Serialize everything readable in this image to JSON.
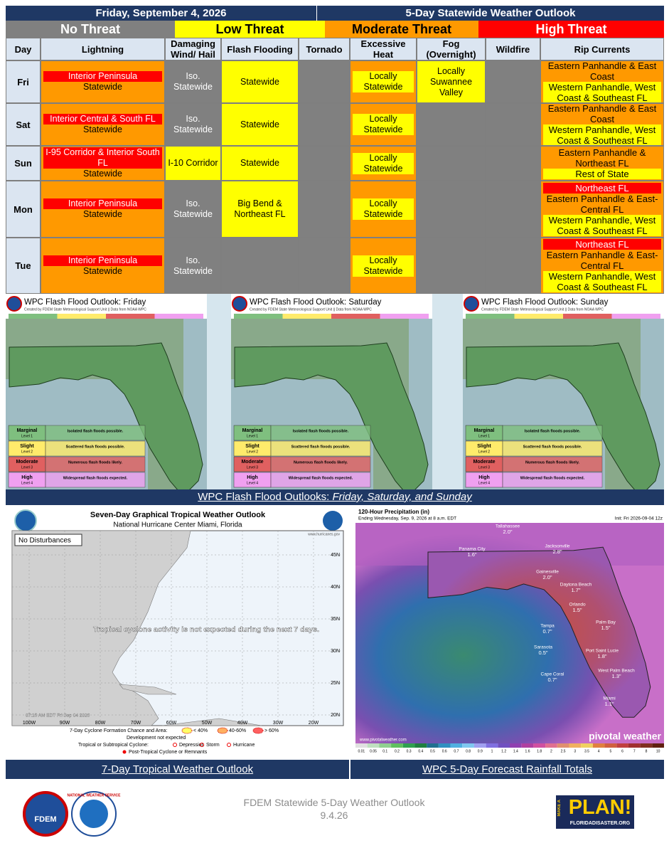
{
  "header": {
    "date": "Friday, September 4, 2026",
    "title": "5-Day Statewide Weather Outlook"
  },
  "legend": [
    {
      "text": "No Threat",
      "color": "#808080"
    },
    {
      "text": "Low Threat",
      "color": "#ffff00"
    },
    {
      "text": "Moderate Threat",
      "color": "#ff9900"
    },
    {
      "text": "High Threat",
      "color": "#ff0000"
    }
  ],
  "table": {
    "columns": [
      "Day",
      "Lightning",
      "Damaging Wind/ Hail",
      "Flash Flooding",
      "Tornado",
      "Excessive Heat",
      "Fog (Overnight)",
      "Wildfire",
      "Rip Currents"
    ],
    "rows": [
      {
        "day": "Fri",
        "cells": [
          {
            "bg": "#ff9900",
            "lines": [
              {
                "text": "Interior Peninsula",
                "bg": "#ff0000"
              },
              {
                "text": "Statewide"
              }
            ]
          },
          {
            "bg": "#808080",
            "lines": [
              {
                "text": "Iso. Statewide"
              }
            ]
          },
          {
            "bg": "#ffff00",
            "lines": [
              {
                "text": "Statewide"
              }
            ]
          },
          {
            "bg": "#808080",
            "lines": []
          },
          {
            "bg": "#ff9900",
            "lines": [
              {
                "text": "Locally Statewide",
                "bg": "#ffff00"
              }
            ]
          },
          {
            "bg": "#ffff00",
            "lines": [
              {
                "text": "Locally Suwannee Valley"
              }
            ]
          },
          {
            "bg": "#808080",
            "lines": []
          },
          {
            "bg": "#ff9900",
            "lines": [
              {
                "text": "Eastern Panhandle & East Coast"
              },
              {
                "text": "Western Panhandle, West Coast & Southeast FL",
                "bg": "#ffff00"
              }
            ]
          }
        ]
      },
      {
        "day": "Sat",
        "cells": [
          {
            "bg": "#ff9900",
            "lines": [
              {
                "text": "Interior Central & South FL",
                "bg": "#ff0000"
              },
              {
                "text": "Statewide"
              }
            ]
          },
          {
            "bg": "#808080",
            "lines": [
              {
                "text": "Iso. Statewide"
              }
            ]
          },
          {
            "bg": "#ffff00",
            "lines": [
              {
                "text": "Statewide"
              }
            ]
          },
          {
            "bg": "#808080",
            "lines": []
          },
          {
            "bg": "#ff9900",
            "lines": [
              {
                "text": "Locally Statewide",
                "bg": "#ffff00"
              }
            ]
          },
          {
            "bg": "#808080",
            "lines": []
          },
          {
            "bg": "#808080",
            "lines": []
          },
          {
            "bg": "#ff9900",
            "lines": [
              {
                "text": "Eastern Panhandle & East Coast"
              },
              {
                "text": "Western Panhandle, West Coast & Southeast FL",
                "bg": "#ffff00"
              }
            ]
          }
        ]
      },
      {
        "day": "Sun",
        "cells": [
          {
            "bg": "#ff9900",
            "lines": [
              {
                "text": "I-95 Corridor & Interior South FL",
                "bg": "#ff0000"
              },
              {
                "text": "Statewide"
              }
            ]
          },
          {
            "bg": "#ffff00",
            "lines": [
              {
                "text": "I-10 Corridor"
              }
            ]
          },
          {
            "bg": "#ffff00",
            "lines": [
              {
                "text": "Statewide"
              }
            ]
          },
          {
            "bg": "#808080",
            "lines": []
          },
          {
            "bg": "#ff9900",
            "lines": [
              {
                "text": "Locally Statewide",
                "bg": "#ffff00"
              }
            ]
          },
          {
            "bg": "#808080",
            "lines": []
          },
          {
            "bg": "#808080",
            "lines": []
          },
          {
            "bg": "#ff9900",
            "lines": [
              {
                "text": "Eastern Panhandle & Northeast FL"
              },
              {
                "text": "Rest of State",
                "bg": "#ffff00"
              }
            ]
          }
        ]
      },
      {
        "day": "Mon",
        "cells": [
          {
            "bg": "#ff9900",
            "lines": [
              {
                "text": "Interior Peninsula",
                "bg": "#ff0000"
              },
              {
                "text": "Statewide"
              }
            ]
          },
          {
            "bg": "#808080",
            "lines": [
              {
                "text": "Iso. Statewide"
              }
            ]
          },
          {
            "bg": "#ffff00",
            "lines": [
              {
                "text": "Big Bend & Northeast FL"
              }
            ]
          },
          {
            "bg": "#808080",
            "lines": []
          },
          {
            "bg": "#ff9900",
            "lines": [
              {
                "text": "Locally Statewide",
                "bg": "#ffff00"
              }
            ]
          },
          {
            "bg": "#808080",
            "lines": []
          },
          {
            "bg": "#808080",
            "lines": []
          },
          {
            "bg": "#ff9900",
            "lines": [
              {
                "text": "Northeast FL",
                "bg": "#ff0000"
              },
              {
                "text": "Eastern Panhandle & East-Central FL"
              },
              {
                "text": "Western Panhandle, West Coast & Southeast FL",
                "bg": "#ffff00"
              }
            ]
          }
        ]
      },
      {
        "day": "Tue",
        "cells": [
          {
            "bg": "#ff9900",
            "lines": [
              {
                "text": "Interior Peninsula",
                "bg": "#ff0000"
              },
              {
                "text": "Statewide"
              }
            ]
          },
          {
            "bg": "#808080",
            "lines": [
              {
                "text": "Iso. Statewide"
              }
            ]
          },
          {
            "bg": "#808080",
            "lines": []
          },
          {
            "bg": "#808080",
            "lines": []
          },
          {
            "bg": "#ff9900",
            "lines": [
              {
                "text": "Locally Statewide",
                "bg": "#ffff00"
              }
            ]
          },
          {
            "bg": "#808080",
            "lines": []
          },
          {
            "bg": "#808080",
            "lines": []
          },
          {
            "bg": "#ff9900",
            "lines": [
              {
                "text": "Northeast FL",
                "bg": "#ff0000"
              },
              {
                "text": "Eastern Panhandle & East-Central FL"
              },
              {
                "text": "Western Panhandle, West Coast & Southeast FL",
                "bg": "#ffff00"
              }
            ]
          }
        ]
      }
    ]
  },
  "flash_flood": {
    "panels": [
      {
        "title": "WPC Flash Flood Outlook: Friday"
      },
      {
        "title": "WPC Flash Flood Outlook: Saturday"
      },
      {
        "title": "WPC Flash Flood Outlook: Sunday"
      }
    ],
    "credit": "Created by FDEM State Meteorological Support Unit || Data from NOAA WPC",
    "levels": [
      {
        "name": "Marginal",
        "level": "Level 1",
        "desc": "Isolated flash floods possible.",
        "color": "#7fbf7f"
      },
      {
        "name": "Slight",
        "level": "Level 2",
        "desc": "Scattered flash floods possible.",
        "color": "#ffeb6b"
      },
      {
        "name": "Moderate",
        "level": "Level 3",
        "desc": "Numerous flash floods likely.",
        "color": "#e06060"
      },
      {
        "name": "High",
        "level": "Level 4",
        "desc": "Widespread flash floods expected.",
        "color": "#f0a0f0"
      }
    ],
    "caption": "WPC Flash Flood Outlooks: ",
    "caption_italic": "Friday, Saturday, and Sunday"
  },
  "tropical": {
    "title": "Seven-Day Graphical Tropical Weather Outlook",
    "subtitle": "National Hurricane Center  Miami, Florida",
    "box": "No Disturbances",
    "message": "Tropical cyclone activity is not expected during the next 7 days.",
    "time": "07:15 AM EDT Fri Sep 04 2026",
    "site": "www.hurricanes.gov",
    "lats": [
      "45N",
      "40N",
      "35N",
      "30N",
      "25N",
      "20N"
    ],
    "lons": [
      "100W",
      "90W",
      "80W",
      "70W",
      "60W",
      "50W",
      "40W",
      "30W",
      "20W"
    ],
    "legend_1": "7-Day Cyclone Formation Chance and Area:",
    "chances": [
      "< 40%",
      "40-60%",
      "> 60%"
    ],
    "not_expected": "Development not expected",
    "legend_2": "Tropical or Subtropical Cyclone:",
    "kinds": [
      "Depression",
      "Storm",
      "Hurricane"
    ],
    "post": "Post-Tropical Cyclone or Remnants",
    "caption": "7-Day Tropical Weather Outlook"
  },
  "rainfall": {
    "title": "120-Hour Precipitation (in)",
    "subtitle": "Ending Wednesday, Sep. 9, 2026 at 8 a.m. EDT",
    "init": "Init: Fri 2026-09-04 12z",
    "brand": "pivotal weather",
    "site": "www.pivotalweather.com",
    "cities": [
      {
        "name": "Tallahassee",
        "amount": "2.0\""
      },
      {
        "name": "Jacksonville",
        "amount": "2.8\""
      },
      {
        "name": "Panama City",
        "amount": "1.6\""
      },
      {
        "name": "Gainesville",
        "amount": "2.0\""
      },
      {
        "name": "Daytona Beach",
        "amount": "1.7\""
      },
      {
        "name": "Orlando",
        "amount": "1.5\""
      },
      {
        "name": "Tampa",
        "amount": "0.7\""
      },
      {
        "name": "Palm Bay",
        "amount": "1.5\""
      },
      {
        "name": "Sarasota",
        "amount": "0.5\""
      },
      {
        "name": "Port Saint Lucie",
        "amount": "1.8\""
      },
      {
        "name": "Cape Coral",
        "amount": "0.7\""
      },
      {
        "name": "West Palm Beach",
        "amount": "1.3\""
      },
      {
        "name": "Miami",
        "amount": "1.1\""
      }
    ],
    "scale": [
      "0.01",
      "0.05",
      "0.1",
      "0.2",
      "0.3",
      "0.4",
      "0.5",
      "0.6",
      "0.7",
      "0.8",
      "0.9",
      "1",
      "1.2",
      "1.4",
      "1.6",
      "1.8",
      "2",
      "2.5",
      "3",
      "3.5",
      "4",
      "5",
      "6",
      "7",
      "8",
      "10"
    ],
    "caption": "WPC 5-Day Forecast Rainfall Totals"
  },
  "footer": {
    "title": "FDEM Statewide 5-Day Weather Outlook",
    "date": "9.4.26",
    "fdem": "FDEM",
    "nws": "NATIONAL WEATHER SERVICE",
    "make": "MAKE A",
    "plan": "PLAN!",
    "site": "FLORIDADISASTER.ORG"
  }
}
